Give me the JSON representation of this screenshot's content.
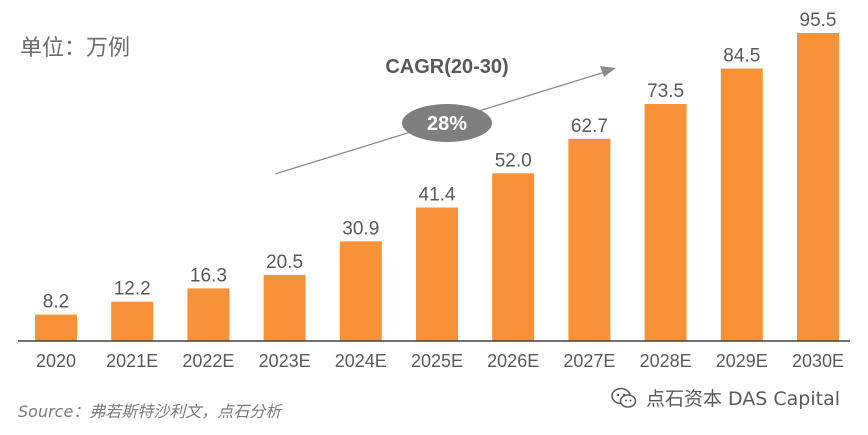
{
  "unit_label": "单位：万例",
  "source": "Source：弗若斯特沙利文，点石分析",
  "watermark": "点石资本 DAS Capital",
  "colors": {
    "bar": "#F7923A",
    "text": "#595959",
    "axis": "#404040",
    "ellipse": "#7f7f7f",
    "arrow": "#8c8c8c"
  },
  "chart_data": {
    "type": "bar",
    "categories": [
      "2020",
      "2021E",
      "2022E",
      "2023E",
      "2024E",
      "2025E",
      "2026E",
      "2027E",
      "2028E",
      "2029E",
      "2030E"
    ],
    "values": [
      8.2,
      12.2,
      16.3,
      20.5,
      30.9,
      41.4,
      52.0,
      62.7,
      73.5,
      84.5,
      95.5
    ],
    "value_labels": [
      "8.2",
      "12.2",
      "16.3",
      "20.5",
      "30.9",
      "41.4",
      "52.0",
      "62.7",
      "73.5",
      "84.5",
      "95.5"
    ],
    "ylim": [
      0,
      95.5
    ],
    "annotation": {
      "label": "CAGR(20-30)",
      "value": "28%"
    },
    "grid": false,
    "legend": "none"
  }
}
